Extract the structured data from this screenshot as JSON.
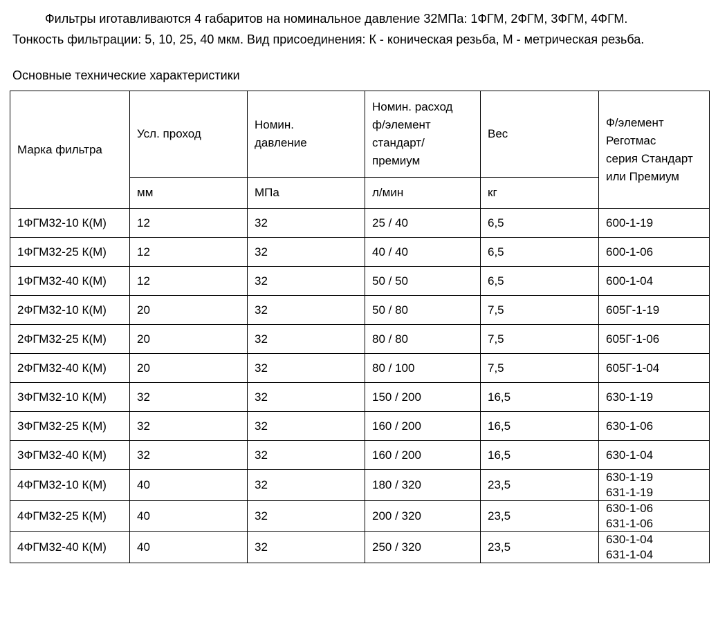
{
  "page": {
    "intro_paragraph": "Фильтры иготавливаются 4 габаритов на номинальное давление 32МПа: 1ФГМ, 2ФГМ, 3ФГМ, 4ФГМ. Тонкость фильтрации: 5, 10, 25, 40 мкм. Вид присоединения: К - коническая резьба, М - метрическая резьба.",
    "section_heading": "Основные технические характеристики"
  },
  "table": {
    "columns": [
      {
        "label": "Марка фильтра",
        "unit": ""
      },
      {
        "label": "Усл. проход",
        "unit": "мм"
      },
      {
        "label": "Номин.\nдавление",
        "unit": "МПа"
      },
      {
        "label": "Номин. расход\nф/элемент\nстандарт/\nпремиум",
        "unit": "л/мин"
      },
      {
        "label": "Вес",
        "unit": "кг"
      },
      {
        "label": "Ф/элемент\nРеготмас\nсерия Стандарт\nили Премиум",
        "unit": ""
      }
    ],
    "rows": [
      [
        "1ФГМ32-10 К(М)",
        "12",
        "32",
        "25 / 40",
        "6,5",
        "600-1-19"
      ],
      [
        "1ФГМ32-25 К(М)",
        "12",
        "32",
        "40 / 40",
        "6,5",
        "600-1-06"
      ],
      [
        "1ФГМ32-40 К(М)",
        "12",
        "32",
        "50 / 50",
        "6,5",
        "600-1-04"
      ],
      [
        "2ФГМ32-10 К(М)",
        "20",
        "32",
        "50 / 80",
        "7,5",
        "605Г-1-19"
      ],
      [
        "2ФГМ32-25 К(М)",
        "20",
        "32",
        "80 / 80",
        "7,5",
        "605Г-1-06"
      ],
      [
        "2ФГМ32-40 К(М)",
        "20",
        "32",
        "80 / 100",
        "7,5",
        "605Г-1-04"
      ],
      [
        "3ФГМ32-10 К(М)",
        "32",
        "32",
        "150 / 200",
        "16,5",
        "630-1-19"
      ],
      [
        "3ФГМ32-25 К(М)",
        "32",
        "32",
        "160 / 200",
        "16,5",
        "630-1-06"
      ],
      [
        "3ФГМ32-40 К(М)",
        "32",
        "32",
        "160 / 200",
        "16,5",
        "630-1-04"
      ],
      [
        "4ФГМ32-10 К(М)",
        "40",
        "32",
        "180 / 320",
        "23,5",
        "630-1-19\n631-1-19"
      ],
      [
        "4ФГМ32-25 К(М)",
        "40",
        "32",
        "200 / 320",
        "23,5",
        "630-1-06\n631-1-06"
      ],
      [
        "4ФГМ32-40 К(М)",
        "40",
        "32",
        "250 / 320",
        "23,5",
        "630-1-04\n631-1-04"
      ]
    ]
  }
}
